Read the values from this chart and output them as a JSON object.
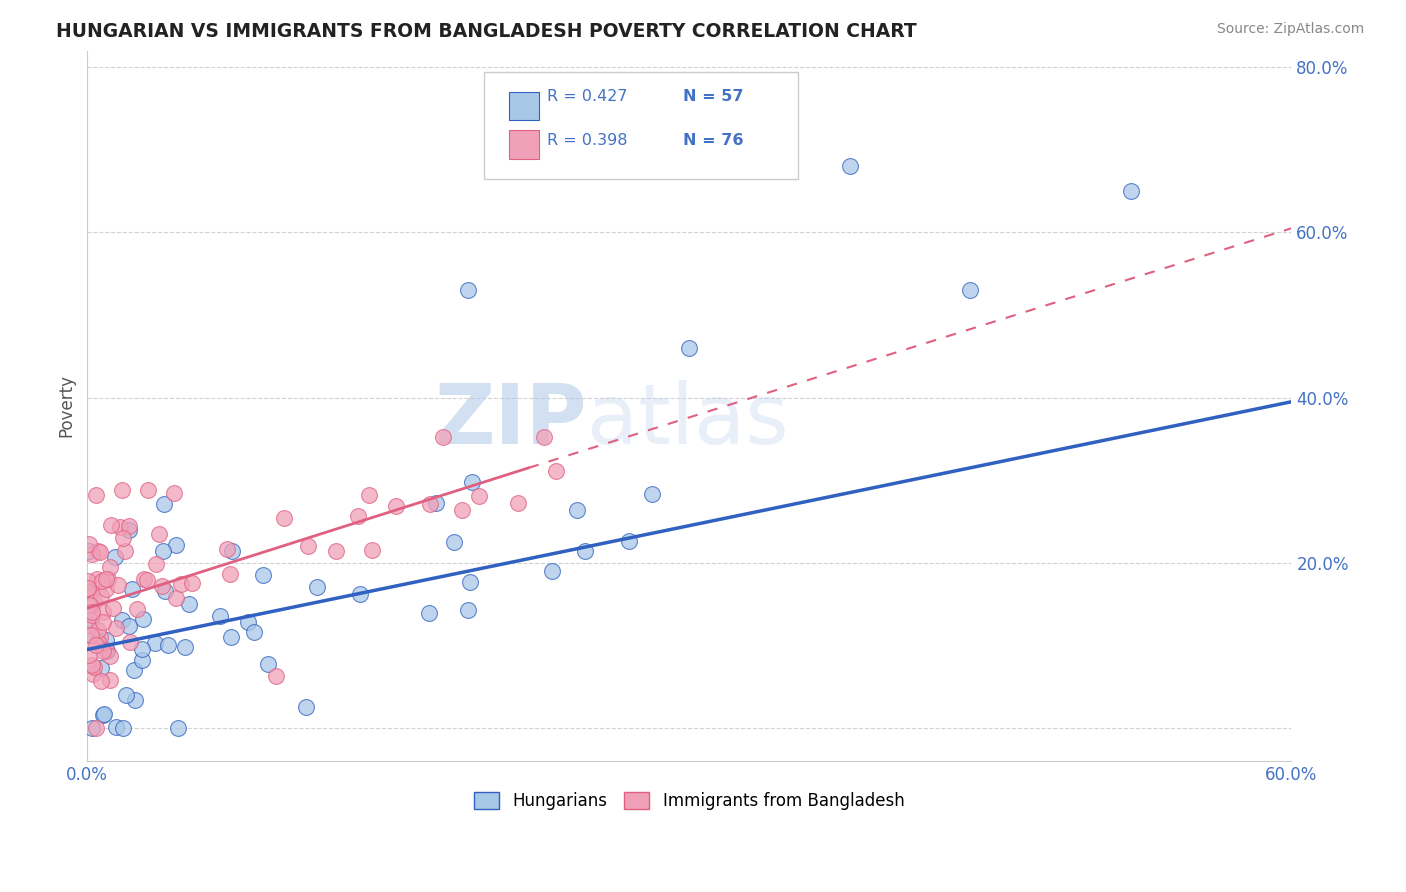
{
  "title": "HUNGARIAN VS IMMIGRANTS FROM BANGLADESH POVERTY CORRELATION CHART",
  "source": "Source: ZipAtlas.com",
  "xlim": [
    0.0,
    0.6
  ],
  "ylim": [
    -0.04,
    0.82
  ],
  "color_hungarian": "#A8C8E8",
  "color_bangladesh": "#F0A0B8",
  "color_hungarian_line": "#3060C0",
  "color_bangladesh_line": "#E06080",
  "legend_r1": "R = 0.427",
  "legend_n1": "N = 57",
  "legend_r2": "R = 0.398",
  "legend_n2": "N = 76",
  "trend_blue_x0": 0.0,
  "trend_blue_y0": 0.095,
  "trend_blue_x1": 0.6,
  "trend_blue_y1": 0.395,
  "trend_pink_solid_x0": 0.0,
  "trend_pink_solid_y0": 0.145,
  "trend_pink_solid_x1": 0.22,
  "trend_pink_solid_y1": 0.315,
  "trend_pink_dash_x0": 0.22,
  "trend_pink_dash_y0": 0.315,
  "trend_pink_dash_x1": 0.6,
  "trend_pink_dash_y1": 0.605,
  "watermark_zip": "ZIP",
  "watermark_atlas": "atlas",
  "axis_color": "#4472C4",
  "grid_color": "#CCCCCC"
}
